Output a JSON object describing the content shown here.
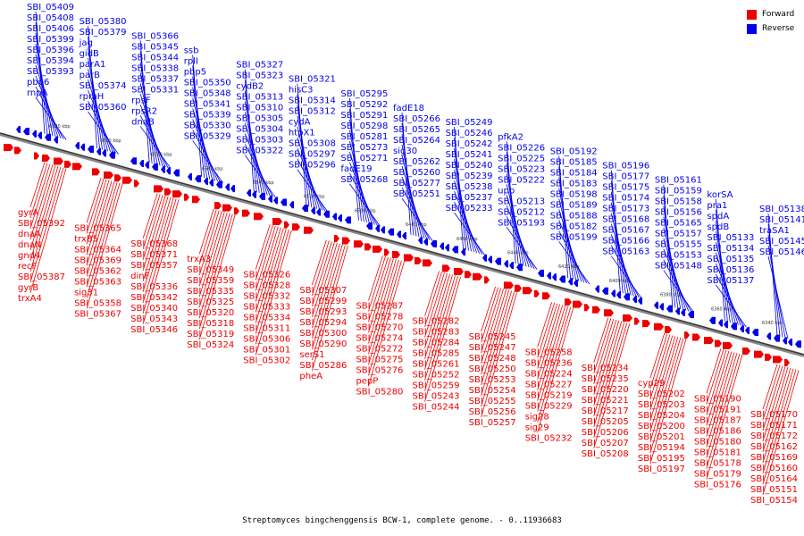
{
  "caption": "Streptomyces bingchenggensis BCW-1, complete genome. - 0..11936683",
  "legend": {
    "forward_label": "Forward",
    "reverse_label": "Reverse",
    "forward_color": "#ee0000",
    "reverse_color": "#0000ee"
  },
  "tick_labels": [
    "6620 kbp",
    "6600 kbp",
    "6580 kbp",
    "6560 kbp",
    "6540 kbp",
    "6520 kbp",
    "6500 kbp",
    "6480 kbp",
    "6460 kbp",
    "6440 kbp",
    "6420 kbp",
    "6400 kbp",
    "6380 kbp",
    "6360 kbp",
    "6340 kbp"
  ],
  "reverse_labels": [
    "SBI_05409",
    "SBI_05408",
    "SBI_05406",
    "SBI_05399",
    "SBI_05396",
    "SBI_05394",
    "SBI_05393",
    "pbp6",
    "rnpA",
    "SBI_05380",
    "SBI_05379",
    "jag",
    "gidB",
    "parA1",
    "parB",
    "SBI_05374",
    "rpmH",
    "SBI_05360",
    "SBI_05366",
    "SBI_05345",
    "SBI_05344",
    "SBI_05338",
    "SBI_05337",
    "SBI_05331",
    "rpsF",
    "rpsR2",
    "dnaB",
    "ssb",
    "rplI",
    "pbp5",
    "SBI_05350",
    "SBI_05348",
    "SBI_05341",
    "SBI_05339",
    "SBI_05330",
    "SBI_05329",
    "SBI_05327",
    "SBI_05323",
    "cydB2",
    "SBI_05313",
    "SBI_05310",
    "SBI_05305",
    "SBI_05304",
    "SBI_05303",
    "SBI_05322",
    "SBI_05321",
    "hisC3",
    "SBI_05314",
    "SBI_05312",
    "cydA",
    "htpX1",
    "SBI_05308",
    "SBI_05297",
    "SBI_05296",
    "SBI_05295",
    "SBI_05292",
    "SBI_05291",
    "SBI_05298",
    "SBI_05281",
    "SBI_05273",
    "SBI_05271",
    "fadE19",
    "SBI_05268",
    "fadE18",
    "SBI_05266",
    "SBI_05265",
    "SBI_05264",
    "sig30",
    "SBI_05262",
    "SBI_05260",
    "SBI_05277",
    "SBI_05251",
    "SBI_05249",
    "SBI_05246",
    "SBI_05242",
    "SBI_05241",
    "SBI_05240",
    "SBI_05239",
    "SBI_05238",
    "SBI_05237",
    "SBI_05233",
    "pfkA2",
    "SBI_05226",
    "SBI_05225",
    "SBI_05223",
    "SBI_05222",
    "upp",
    "SBI_05213",
    "SBI_05212",
    "SBI_05193",
    "SBI_05192",
    "SBI_05185",
    "SBI_05184",
    "SBI_05183",
    "SBI_05198",
    "SBI_05189",
    "SBI_05188",
    "SBI_05182",
    "SBI_05199",
    "SBI_05196",
    "SBI_05177",
    "SBI_05175",
    "SBI_05174",
    "SBI_05173",
    "SBI_05168",
    "SBI_05167",
    "SBI_05166",
    "SBI_05163",
    "SBI_05161",
    "SBI_05159",
    "SBI_05158",
    "SBI_05156",
    "SBI_05165",
    "SBI_05157",
    "SBI_05155",
    "SBI_05153",
    "SBI_05148",
    "korSA",
    "pra1",
    "spdA",
    "spdB",
    "SBI_05133",
    "SBI_05134",
    "SBI_05135",
    "SBI_05136",
    "SBI_05137",
    "SBI_05138",
    "SBI_05141",
    "traSA1",
    "SBI_05145",
    "SBI_05146"
  ],
  "forward_labels": [
    "gyrA",
    "SBI_05392",
    "dnaA",
    "dnaN",
    "gnd4",
    "recF",
    "SBI_05387",
    "gyrB",
    "trxA4",
    "SBI_05365",
    "trxB5",
    "SBI_05364",
    "SBI_05369",
    "SBI_05362",
    "SBI_05363",
    "sig31",
    "SBI_05358",
    "SBI_05367",
    "SBI_05368",
    "SBI_05371",
    "SBI_05357",
    "dinF",
    "SBI_05336",
    "SBI_05342",
    "SBI_05340",
    "SBI_05343",
    "SBI_05346",
    "trxA3",
    "SBI_05349",
    "SBI_05359",
    "SBI_05335",
    "SBI_05325",
    "SBI_05320",
    "SBI_05318",
    "SBI_05319",
    "SBI_05324",
    "SBI_05326",
    "SBI_05328",
    "SBI_05332",
    "SBI_05333",
    "SBI_05334",
    "SBI_05311",
    "SBI_05306",
    "SBI_05301",
    "SBI_05302",
    "SBI_05307",
    "SBI_05299",
    "SBI_05293",
    "SBI_05294",
    "SBI_05300",
    "SBI_05290",
    "serS1",
    "SBI_05286",
    "pheA",
    "SBI_05287",
    "SBI_05278",
    "SBI_05270",
    "SBI_05274",
    "SBI_05272",
    "SBI_05275",
    "SBI_05276",
    "pepP",
    "SBI_05280",
    "SBI_05282",
    "SBI_05283",
    "SBI_05284",
    "SBI_05285",
    "SBI_05261",
    "SBI_05252",
    "SBI_05259",
    "SBI_05243",
    "SBI_05244",
    "SBI_05245",
    "SBI_05247",
    "SBI_05248",
    "SBI_05250",
    "SBI_05253",
    "SBI_05254",
    "SBI_05255",
    "SBI_05256",
    "SBI_05257",
    "SBI_05258",
    "SBI_05236",
    "SBI_05224",
    "SBI_05227",
    "SBI_05219",
    "SBI_05229",
    "sig28",
    "sig29",
    "SBI_05232",
    "SBI_05234",
    "SBI_05235",
    "SBI_05220",
    "SBI_05221",
    "SBI_05217",
    "SBI_05205",
    "SBI_05206",
    "SBI_05207",
    "SBI_05208",
    "cyp29",
    "SBI_05202",
    "SBI_05203",
    "SBI_05204",
    "SBI_05200",
    "SBI_05201",
    "SBI_05194",
    "SBI_05195",
    "SBI_05197",
    "SBI_05190",
    "SBI_05191",
    "SBI_05187",
    "SBI_05186",
    "SBI_05180",
    "SBI_05181",
    "SBI_05178",
    "SBI_05179",
    "SBI_05176",
    "SBI_05170",
    "SBI_05171",
    "SBI_05172",
    "SBI_05162",
    "SBI_05169",
    "SBI_05160",
    "SBI_05164",
    "SBI_05151",
    "SBI_05154"
  ]
}
